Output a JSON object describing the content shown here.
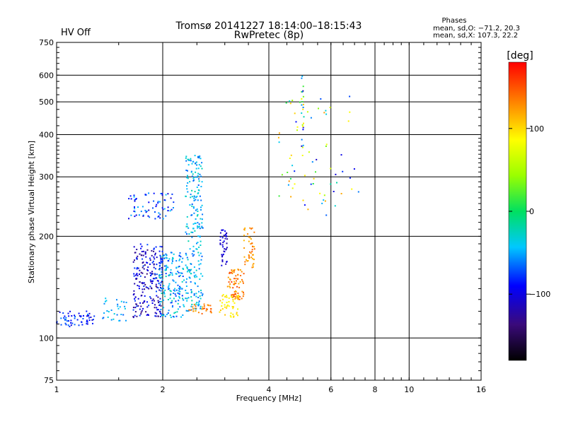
{
  "header": {
    "title": "Tromsø 20141227 18:14:00–18:15:43",
    "subtitle": "RwPretec (8p)",
    "status": "HV Off",
    "status_color": "#cc0000",
    "phases_title": "Phases",
    "phases_o": "mean, sd,O: −71.2, 20.3",
    "phases_x": "mean, sd,X: 107.3, 22.2"
  },
  "colorbar": {
    "label": "[deg]",
    "ticks": [
      {
        "value": 100,
        "label": "100"
      },
      {
        "value": 0,
        "label": "0"
      },
      {
        "value": -100,
        "label": "−100"
      }
    ],
    "range": [
      -180,
      180
    ]
  },
  "chart_data": {
    "type": "scatter",
    "title": "Tromsø 20141227 18:14:00–18:15:43",
    "subtitle": "RwPretec (8p)",
    "xlabel": "Frequency [MHz]",
    "ylabel": "Stationary phase Virtual Height [km]",
    "xscale": "log",
    "yscale": "log",
    "xlim": [
      1,
      16
    ],
    "ylim": [
      75,
      750
    ],
    "xticks": [
      {
        "value": 1,
        "label": "1"
      },
      {
        "value": 2,
        "label": "2"
      },
      {
        "value": 4,
        "label": "4"
      },
      {
        "value": 6,
        "label": "6"
      },
      {
        "value": 8,
        "label": "8"
      },
      {
        "value": 10,
        "label": "10"
      },
      {
        "value": 16,
        "label": "16"
      }
    ],
    "yticks": [
      {
        "value": 75,
        "label": "75"
      },
      {
        "value": 100,
        "label": "100"
      },
      {
        "value": 200,
        "label": "200"
      },
      {
        "value": 300,
        "label": "300"
      },
      {
        "value": 400,
        "label": "400"
      },
      {
        "value": 500,
        "label": "500"
      },
      {
        "value": 600,
        "label": "600"
      },
      {
        "value": 750,
        "label": "750"
      }
    ],
    "grid": true,
    "color_variable": "phase [deg]",
    "clusters": [
      {
        "name": "low-frequency E trace",
        "f_min": 1.0,
        "f_max": 1.28,
        "h_min": 108,
        "h_max": 120,
        "phase_min": -110,
        "phase_max": -60,
        "count": 60
      },
      {
        "name": "E trace rise",
        "f_min": 1.3,
        "f_max": 1.58,
        "h_min": 112,
        "h_max": 132,
        "phase_min": -70,
        "phase_max": -30,
        "count": 30
      },
      {
        "name": "main F trace A",
        "f_min": 1.65,
        "f_max": 2.0,
        "h_min": 115,
        "h_max": 190,
        "phase_min": -140,
        "phase_max": -70,
        "count": 220
      },
      {
        "name": "main F trace B",
        "f_min": 1.95,
        "f_max": 2.3,
        "h_min": 115,
        "h_max": 180,
        "phase_min": -80,
        "phase_max": -20,
        "count": 170
      },
      {
        "name": "upper F trace",
        "f_min": 1.6,
        "f_max": 2.15,
        "h_min": 225,
        "h_max": 270,
        "phase_min": -110,
        "phase_max": -40,
        "count": 70
      },
      {
        "name": "F2 vertical column",
        "f_min": 2.32,
        "f_max": 2.6,
        "h_min": 120,
        "h_max": 350,
        "phase_min": -70,
        "phase_max": -20,
        "count": 240
      },
      {
        "name": "orange trace low",
        "f_min": 2.35,
        "f_max": 2.75,
        "h_min": 118,
        "h_max": 126,
        "phase_min": 110,
        "phase_max": 150,
        "count": 30
      },
      {
        "name": "blue column",
        "f_min": 2.9,
        "f_max": 3.05,
        "h_min": 160,
        "h_max": 210,
        "phase_min": -120,
        "phase_max": -90,
        "count": 40
      },
      {
        "name": "yellow trace",
        "f_min": 2.9,
        "f_max": 3.3,
        "h_min": 115,
        "h_max": 135,
        "phase_min": 80,
        "phase_max": 110,
        "count": 50
      },
      {
        "name": "orange trace mid",
        "f_min": 3.05,
        "f_max": 3.4,
        "h_min": 130,
        "h_max": 160,
        "phase_min": 110,
        "phase_max": 160,
        "count": 70
      },
      {
        "name": "orange trace high",
        "f_min": 3.4,
        "f_max": 3.65,
        "h_min": 160,
        "h_max": 215,
        "phase_min": 110,
        "phase_max": 145,
        "count": 45
      },
      {
        "name": "F region scatter",
        "f_min": 4.2,
        "f_max": 7.2,
        "h_min": 230,
        "h_max": 520,
        "phase_min": -120,
        "phase_max": 130,
        "count": 70
      },
      {
        "name": "5 MHz column",
        "f_min": 4.95,
        "f_max": 5.02,
        "h_min": 360,
        "h_max": 650,
        "phase_min": -130,
        "phase_max": 110,
        "count": 24
      }
    ]
  }
}
